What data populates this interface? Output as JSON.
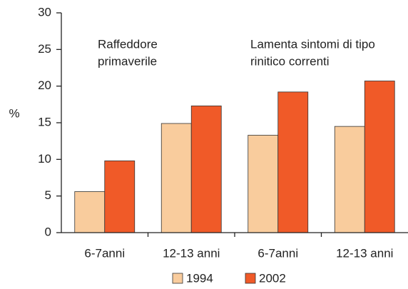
{
  "chart_data": {
    "type": "bar",
    "y_label": "%",
    "categories": [
      "6-7anni",
      "12-13 anni",
      "6-7anni",
      "12-13 anni"
    ],
    "series": [
      {
        "name": "1994",
        "color": "#f9cc9d",
        "values": [
          5.6,
          14.9,
          13.3,
          14.5
        ]
      },
      {
        "name": "2002",
        "color": "#f05a28",
        "values": [
          9.8,
          17.3,
          19.2,
          20.7
        ]
      }
    ],
    "annotations": [
      {
        "lines": [
          "Raffeddore",
          "primaverile"
        ]
      },
      {
        "lines": [
          "Lamenta sintomi di tipo",
          "rinitico correnti"
        ]
      }
    ],
    "ylim": [
      0,
      30
    ],
    "yticks": [
      0,
      5,
      10,
      15,
      20,
      25,
      30
    ],
    "grid": false
  }
}
